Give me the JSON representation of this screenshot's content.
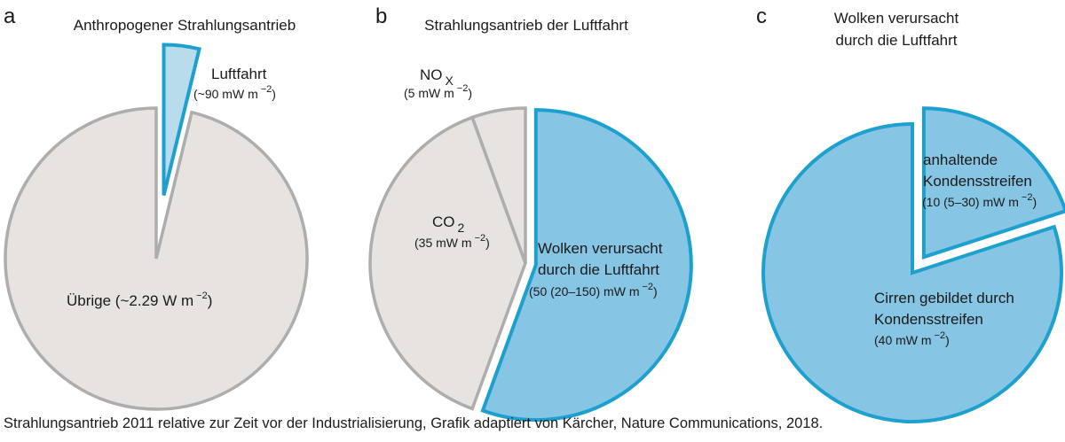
{
  "colors": {
    "grey_fill": "#e6e3e1",
    "grey_stroke": "#adadad",
    "blue_fill": "#86c5e4",
    "blue_stroke": "#1ea0cf",
    "light_blue_fill": "#b8dcec"
  },
  "chart_data": [
    {
      "type": "pie",
      "panel": "a",
      "title": "Anthropogener Strahlungsantrieb",
      "slices": [
        {
          "label": "Luftfahrt",
          "value_text": "(~90 mW m",
          "value_exponent": "−2",
          "value_close": ")",
          "value": 90,
          "exploded": true,
          "color": "blue"
        },
        {
          "label": "Übrige (~2.29 W m",
          "label_exponent": "−2",
          "label_close": ")",
          "value": 2290,
          "exploded": false,
          "color": "grey"
        }
      ]
    },
    {
      "type": "pie",
      "panel": "b",
      "title": "Strahlungsantrieb der Luftfahrt",
      "slices": [
        {
          "label": "Wolken verursacht",
          "label2": "durch die Luftfahrt",
          "value_text": "(50 (20–150) mW m",
          "value_exponent": "−2",
          "value_close": ")",
          "value": 50,
          "exploded": true,
          "color": "blue"
        },
        {
          "label": "CO",
          "label_subscript": "2",
          "value_text": "(35 mW m",
          "value_exponent": "−2",
          "value_close": ")",
          "value": 35,
          "exploded": false,
          "color": "grey"
        },
        {
          "label": "NO",
          "label_subscript": "X",
          "value_text": "(5 mW m",
          "value_exponent": "−2",
          "value_close": ")",
          "value": 5,
          "exploded": false,
          "color": "grey"
        }
      ]
    },
    {
      "type": "pie",
      "panel": "c",
      "title": "Wolken verursacht",
      "title2": "durch die Luftfahrt",
      "slices": [
        {
          "label": "anhaltende",
          "label2": "Kondensstreifen",
          "value_text": "(10 (5–30) mW m",
          "value_exponent": "−2",
          "value_close": ")",
          "value": 10,
          "exploded": true,
          "color": "blue"
        },
        {
          "label": "Cirren gebildet durch",
          "label2": "Kondensstreifen",
          "value_text": "(40 mW m",
          "value_exponent": "−2",
          "value_close": ")",
          "value": 40,
          "exploded": false,
          "color": "blue"
        }
      ]
    }
  ],
  "caption": "Strahlungsantrieb 2011 relative zur Zeit vor der Industrialisierung, Grafik adaptiert von Kärcher, Nature Communications, 2018."
}
